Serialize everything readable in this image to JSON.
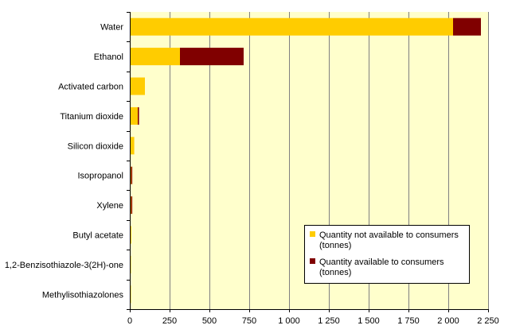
{
  "chart_data": {
    "type": "bar",
    "orientation": "horizontal",
    "stacked": true,
    "categories": [
      "Water",
      "Ethanol",
      "Activated carbon",
      "Titanium dioxide",
      "Silicon dioxide",
      "Isopropanol",
      "Xylene",
      "Butyl acetate",
      "1,2-Benzisothiazole-3(2H)-one",
      "Methylisothiazolones"
    ],
    "series": [
      {
        "name": "Quantity not available to consumers (tonnes)",
        "color": "#FFCC00",
        "values": [
          2030,
          315,
          95,
          50,
          28,
          8,
          8,
          10,
          2,
          1
        ]
      },
      {
        "name": "Quantity available to consumers (tonnes)",
        "color": "#800000",
        "values": [
          175,
          400,
          0,
          8,
          0,
          4,
          4,
          0,
          0,
          0
        ]
      }
    ],
    "xlim": [
      0,
      2250
    ],
    "xticks": [
      0,
      250,
      500,
      750,
      1000,
      1250,
      1500,
      1750,
      2000,
      2250
    ],
    "xtick_labels": [
      "0",
      "250",
      "500",
      "750",
      "1 000",
      "1 250",
      "1 500",
      "1 750",
      "2 000",
      "2 250"
    ],
    "xlabel": "",
    "ylabel": "",
    "title": "",
    "grid": "vertical",
    "plot_background": "#FFFFCC",
    "legend": {
      "placement": "lower-right",
      "entries": [
        {
          "line1": "Quantity not available to consumers",
          "line2": "(tonnes)",
          "color": "#FFCC00"
        },
        {
          "line1": "Quantity available to consumers",
          "line2": "(tonnes)",
          "color": "#800000"
        }
      ]
    }
  }
}
